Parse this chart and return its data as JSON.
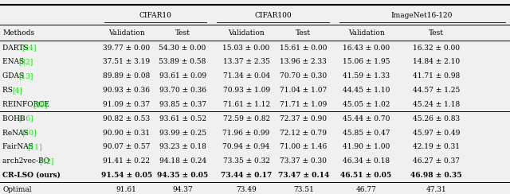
{
  "group1_rows": [
    [
      "DARTS",
      "[24]",
      "39.77 ± 0.00",
      "54.30 ± 0.00",
      "15.03 ± 0.00",
      "15.61 ± 0.00",
      "16.43 ± 0.00",
      "16.32 ± 0.00"
    ],
    [
      "ENAS",
      "[32]",
      "37.51 ± 3.19",
      "53.89 ± 0.58",
      "13.37 ± 2.35",
      "13.96 ± 2.33",
      "15.06 ± 1.95",
      "14.84 ± 2.10"
    ],
    [
      "GDAS",
      "[13]",
      "89.89 ± 0.08",
      "93.61 ± 0.09",
      "71.34 ± 0.04",
      "70.70 ± 0.30",
      "41.59 ± 1.33",
      "41.71 ± 0.98"
    ],
    [
      "RS",
      "[4]",
      "90.93 ± 0.36",
      "93.70 ± 0.36",
      "70.93 ± 1.09",
      "71.04 ± 1.07",
      "44.45 ± 1.10",
      "44.57 ± 1.25"
    ],
    [
      "REINFORCE",
      "[39]",
      "91.09 ± 0.37",
      "93.85 ± 0.37",
      "71.61 ± 1.12",
      "71.71 ± 1.09",
      "45.05 ± 1.02",
      "45.24 ± 1.18"
    ]
  ],
  "group2_rows": [
    [
      "BOHB",
      "[16]",
      "90.82 ± 0.53",
      "93.61 ± 0.52",
      "72.59 ± 0.82",
      "72.37 ± 0.90",
      "45.44 ± 0.70",
      "45.26 ± 0.83"
    ],
    [
      "ReNAS",
      "[40]",
      "90.90 ± 0.31",
      "93.99 ± 0.25",
      "71.96 ± 0.99",
      "72.12 ± 0.79",
      "45.85 ± 0.47",
      "45.97 ± 0.49"
    ],
    [
      "FairNAS",
      "[11]",
      "90.07 ± 0.57",
      "93.23 ± 0.18",
      "70.94 ± 0.94",
      "71.00 ± 1.46",
      "41.90 ± 1.00",
      "42.19 ± 0.31"
    ],
    [
      "arch2vec-BO",
      "[42]",
      "91.41 ± 0.22",
      "94.18 ± 0.24",
      "73.35 ± 0.32",
      "73.37 ± 0.30",
      "46.34 ± 0.18",
      "46.27 ± 0.37"
    ],
    [
      "CR-LSO (ours)",
      "",
      "91.54 ± 0.05",
      "94.35 ± 0.05",
      "73.44 ± 0.17",
      "73.47 ± 0.14",
      "46.51 ± 0.05",
      "46.98 ± 0.35"
    ]
  ],
  "optimal_row": [
    "Optimal",
    "",
    "91.61",
    "94.37",
    "73.49",
    "73.51",
    "46.77",
    "47.31"
  ],
  "col_headers": [
    "Methods",
    "Validation",
    "Test",
    "Validation",
    "Test",
    "Validation",
    "Test"
  ],
  "group_headers": [
    "CIFAR10",
    "CIFAR100",
    "ImageNet16-120"
  ],
  "citation_color": "#00ee00",
  "bg_color": "#f0f0f0",
  "fontsize": 6.5
}
